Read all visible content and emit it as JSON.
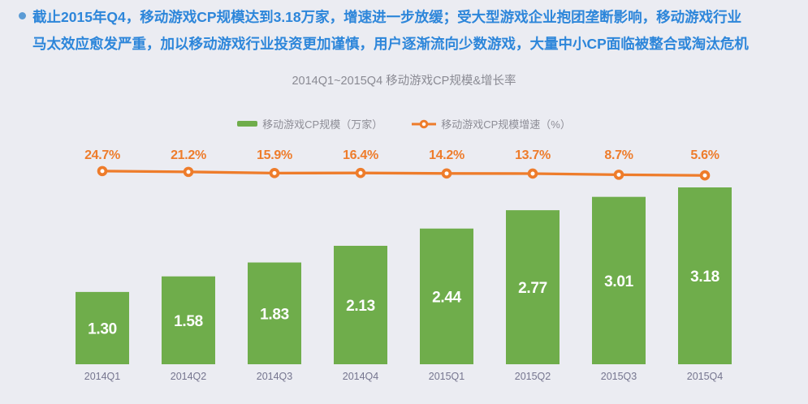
{
  "page": {
    "background_color": "#ebecf2"
  },
  "intro": {
    "bullet_color": "#5b9bd5",
    "text_color": "#2d86da",
    "lines": [
      "截止2015年Q4，移动游戏CP规模达到3.18万家，增速进一步放缓；受大型游戏企业抱团垄断影响，移动游戏行业",
      "马太效应愈发严重，加以移动游戏行业投资更加谨慎，用户逐渐流向少数游戏，大量中小CP面临被整合或淘汰危机"
    ]
  },
  "chart_data": {
    "type": "bar",
    "title": "2014Q1~2015Q4 移动游戏CP规模&增长率",
    "categories": [
      "2014Q1",
      "2014Q2",
      "2014Q3",
      "2014Q4",
      "2015Q1",
      "2015Q2",
      "2015Q3",
      "2015Q4"
    ],
    "series": [
      {
        "name": "移动游戏CP规模（万家）",
        "type": "bar",
        "color": "#6fad4b",
        "values": [
          1.3,
          1.58,
          1.83,
          2.13,
          2.44,
          2.77,
          3.01,
          3.18
        ],
        "labels": [
          "1.30",
          "1.58",
          "1.83",
          "2.13",
          "2.44",
          "2.77",
          "3.01",
          "3.18"
        ],
        "label_color": "#ffffff"
      },
      {
        "name": "移动游戏CP规模增速（%）",
        "type": "line",
        "color": "#ee7c2b",
        "values": [
          24.7,
          21.2,
          15.9,
          16.4,
          14.2,
          13.7,
          8.7,
          5.6
        ],
        "labels": [
          "24.7%",
          "21.2%",
          "15.9%",
          "16.4%",
          "14.2%",
          "13.7%",
          "8.7%",
          "5.6%"
        ],
        "marker": "ring"
      }
    ],
    "xlabel": "",
    "ylabel": "",
    "ylim": [
      0,
      3.5
    ],
    "grid": false,
    "axes_visible": false,
    "value_labels": true,
    "legend_position": "top",
    "x_label_color": "#75758f",
    "title_color": "#8a8a93"
  }
}
